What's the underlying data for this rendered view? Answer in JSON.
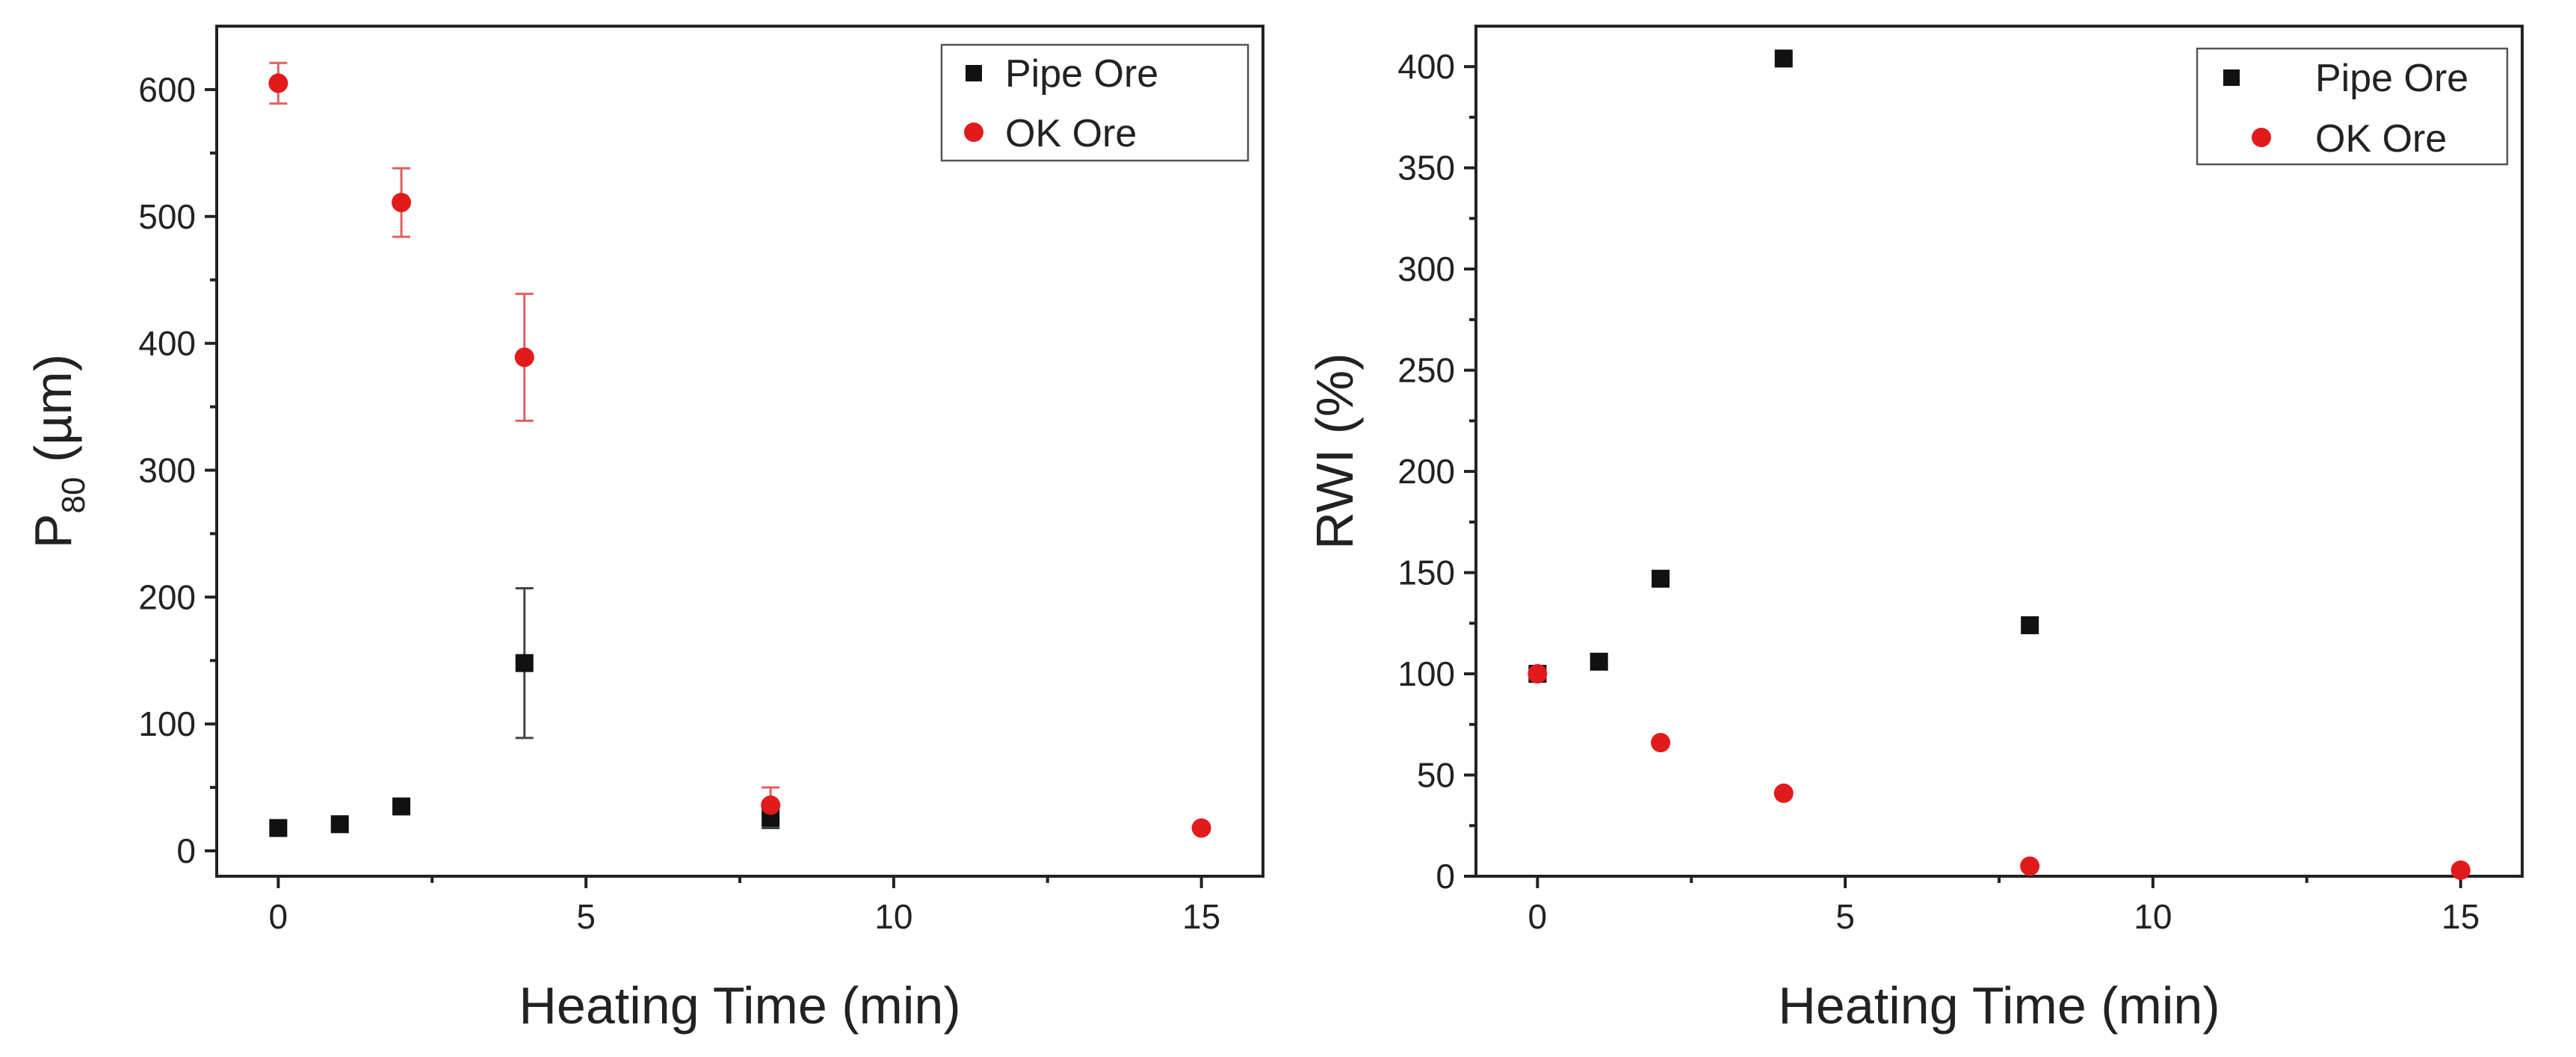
{
  "colors": {
    "pipe": "#111111",
    "ok": "#e31a1c",
    "ok_errbar": "#e06060",
    "pipe_errbar": "#444444"
  },
  "chart_data": [
    {
      "type": "scatter",
      "title": "",
      "xlabel": "Heating Time (min)",
      "ylabel_main": "P",
      "ylabel_sub": "80",
      "ylabel_unit": " (µm)",
      "xlim": [
        -1,
        16
      ],
      "ylim": [
        -20,
        650
      ],
      "xticks": [
        0,
        5,
        10,
        15
      ],
      "yticks": [
        0,
        100,
        200,
        300,
        400,
        500,
        600
      ],
      "legend_position": "top-right",
      "series": [
        {
          "name": "Pipe Ore",
          "marker": "square",
          "color": "#111111",
          "x": [
            0,
            1,
            2,
            4,
            8
          ],
          "y": [
            18,
            21,
            35,
            148,
            26
          ],
          "err": [
            0,
            0,
            0,
            59,
            8
          ]
        },
        {
          "name": "OK Ore",
          "marker": "circle",
          "color": "#e31a1c",
          "x": [
            0,
            2,
            4,
            8,
            15
          ],
          "y": [
            605,
            511,
            389,
            36,
            18
          ],
          "err": [
            16,
            27,
            50,
            14,
            0
          ]
        }
      ]
    },
    {
      "type": "scatter",
      "title": "",
      "xlabel": "Heating Time (min)",
      "ylabel": "RWI (%)",
      "xlim": [
        -1,
        16
      ],
      "ylim": [
        0,
        420
      ],
      "xticks": [
        0,
        5,
        10,
        15
      ],
      "yticks": [
        0,
        50,
        100,
        150,
        200,
        250,
        300,
        350,
        400
      ],
      "legend_position": "top-right",
      "series": [
        {
          "name": "Pipe Ore",
          "marker": "square",
          "color": "#111111",
          "x": [
            0,
            1,
            2,
            4,
            8
          ],
          "y": [
            100,
            106,
            147,
            404,
            124
          ]
        },
        {
          "name": "OK Ore",
          "marker": "circle",
          "color": "#e31a1c",
          "x": [
            0,
            2,
            4,
            8,
            15
          ],
          "y": [
            100,
            66,
            41,
            5,
            3
          ]
        }
      ]
    }
  ]
}
